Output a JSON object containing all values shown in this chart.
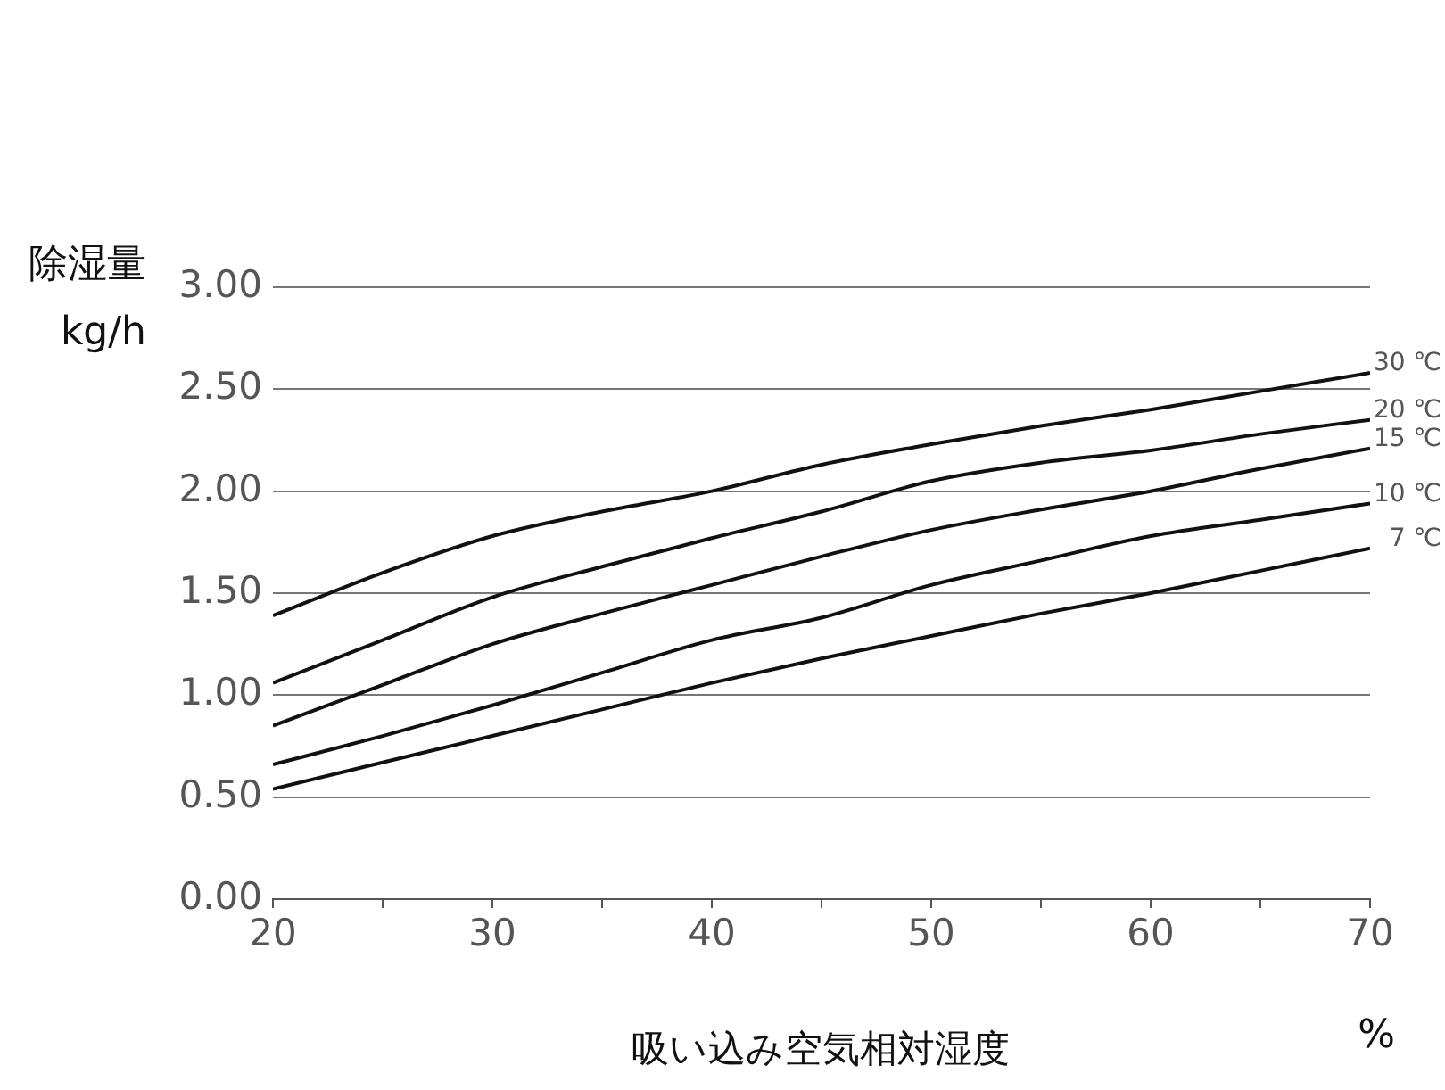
{
  "chart_data": {
    "type": "line",
    "xlabel": "吸い込み空気相対湿度",
    "ylabel": "除湿量 kg/h",
    "annotations": [
      "%"
    ],
    "x": [
      20,
      25,
      30,
      35,
      40,
      45,
      50,
      55,
      60,
      65,
      70
    ],
    "series": [
      {
        "name": "30 ℃",
        "color": "#111111",
        "values": [
          1.39,
          1.6,
          1.78,
          1.9,
          2.0,
          2.13,
          2.23,
          2.32,
          2.4,
          2.49,
          2.58
        ]
      },
      {
        "name": "20 ℃",
        "color": "#111111",
        "values": [
          1.06,
          1.27,
          1.48,
          1.63,
          1.77,
          1.9,
          2.05,
          2.14,
          2.2,
          2.28,
          2.35
        ]
      },
      {
        "name": "15 ℃",
        "color": "#111111",
        "values": [
          0.85,
          1.05,
          1.25,
          1.4,
          1.54,
          1.68,
          1.81,
          1.91,
          2.0,
          2.11,
          2.21
        ]
      },
      {
        "name": "10 ℃",
        "color": "#111111",
        "values": [
          0.66,
          0.8,
          0.95,
          1.11,
          1.27,
          1.38,
          1.54,
          1.66,
          1.78,
          1.86,
          1.94
        ]
      },
      {
        "name": "7 ℃",
        "color": "#111111",
        "values": [
          0.54,
          0.67,
          0.8,
          0.93,
          1.06,
          1.18,
          1.29,
          1.4,
          1.5,
          1.61,
          1.72
        ]
      }
    ],
    "xlim": [
      20,
      70
    ],
    "xticks": [
      20,
      {
        "value": 25,
        "label": null
      },
      30,
      {
        "value": 35,
        "label": null
      },
      40,
      {
        "value": 45,
        "label": null
      },
      50,
      {
        "value": 55,
        "label": null
      },
      60,
      {
        "value": 65,
        "label": null
      },
      70
    ],
    "ylim": [
      0,
      3
    ],
    "yticks": [
      {
        "value": 0,
        "label": "0.00"
      },
      {
        "value": 0.5,
        "label": "0.50"
      },
      {
        "value": 1,
        "label": "1.00"
      },
      {
        "value": 1.5,
        "label": "1.50"
      },
      {
        "value": 2,
        "label": "2.00"
      },
      {
        "value": 2.5,
        "label": "2.50"
      },
      {
        "value": 3,
        "label": "3.00"
      }
    ],
    "grid": "y",
    "legend": false,
    "marker": "none",
    "line_style": "solid"
  }
}
